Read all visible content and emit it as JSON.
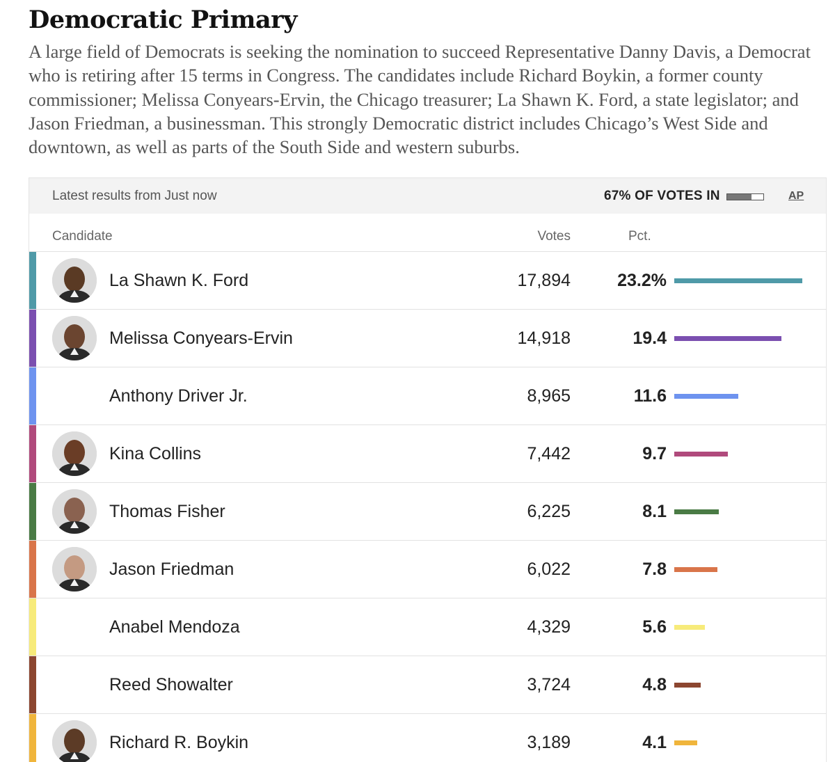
{
  "header": {
    "title": "Democratic Primary",
    "description": "A large field of Democrats is seeking the nomination to succeed Representative Danny Davis, a Democrat who is retiring after 15 terms in Congress. The candidates include Richard Boykin, a former county commissioner; Melissa Conyears-Ervin, the Chicago treasurer; La Shawn K. Ford, a state legislator; and Jason Friedman, a businessman. This strongly Democratic district includes Chicago’s West Side and downtown, as well as parts of the South Side and western suburbs."
  },
  "results": {
    "latest": "Latest results from Just now",
    "votes_in": "67% OF VOTES IN",
    "votes_in_fraction": 0.67,
    "source": "AP",
    "columns": {
      "candidate": "Candidate",
      "votes": "Votes",
      "pct": "Pct."
    }
  },
  "candidates": [
    {
      "name": "La Shawn K. Ford",
      "votes": "17,894",
      "pct": "23.2%",
      "pct_value": 23.2,
      "color": "#4f9aa8",
      "photo": true,
      "skin": "#5a3a24"
    },
    {
      "name": "Melissa Conyears-Ervin",
      "votes": "14,918",
      "pct": "19.4",
      "pct_value": 19.4,
      "color": "#7b4fb0",
      "photo": true,
      "skin": "#6b4530"
    },
    {
      "name": "Anthony Driver Jr.",
      "votes": "8,965",
      "pct": "11.6",
      "pct_value": 11.6,
      "color": "#6e93ef",
      "photo": false
    },
    {
      "name": "Kina Collins",
      "votes": "7,442",
      "pct": "9.7",
      "pct_value": 9.7,
      "color": "#b04a7c",
      "photo": true,
      "skin": "#6a3d26"
    },
    {
      "name": "Thomas Fisher",
      "votes": "6,225",
      "pct": "8.1",
      "pct_value": 8.1,
      "color": "#4a7b45",
      "photo": true,
      "skin": "#8a6250"
    },
    {
      "name": "Jason Friedman",
      "votes": "6,022",
      "pct": "7.8",
      "pct_value": 7.8,
      "color": "#d9754a",
      "photo": true,
      "skin": "#c49a82"
    },
    {
      "name": "Anabel Mendoza",
      "votes": "4,329",
      "pct": "5.6",
      "pct_value": 5.6,
      "color": "#f7eb7a",
      "photo": false
    },
    {
      "name": "Reed Showalter",
      "votes": "3,724",
      "pct": "4.8",
      "pct_value": 4.8,
      "color": "#8c4630",
      "photo": false
    },
    {
      "name": "Richard R. Boykin",
      "votes": "3,189",
      "pct": "4.1",
      "pct_value": 4.1,
      "color": "#f0b53c",
      "photo": true,
      "skin": "#5c3b26"
    }
  ]
}
